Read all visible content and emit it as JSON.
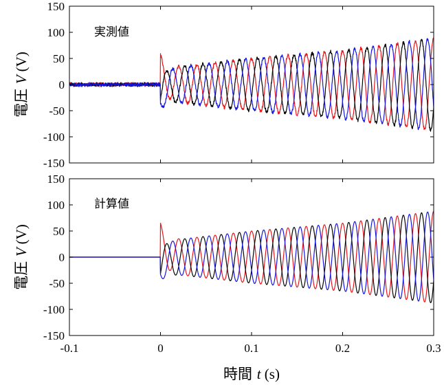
{
  "chart_data": [
    {
      "type": "line",
      "annotation": "実測値",
      "ylabel": {
        "text": "電圧",
        "symbol": "V",
        "unit": "(V)"
      },
      "xlim": [
        -0.1,
        0.3
      ],
      "ylim": [
        -150,
        150
      ],
      "xticks": [
        -0.1,
        0,
        0.1,
        0.2,
        0.3
      ],
      "xtick_labels": [
        "",
        "",
        "",
        "",
        ""
      ],
      "yticks": [
        150,
        100,
        50,
        0,
        -50,
        -100,
        -150
      ],
      "ytick_labels": [
        "150",
        "100",
        "50",
        "0",
        "-50",
        "-100",
        "-150"
      ],
      "grid": false,
      "model": {
        "t0": 0,
        "f": 50,
        "noise_before": 3,
        "noise_after": 3
      },
      "series": [
        {
          "color": "#e8151b",
          "phase_deg": 90,
          "amp_at": [
            [
              0,
              30
            ],
            [
              0.1,
              50
            ],
            [
              0.2,
              65
            ],
            [
              0.3,
              88
            ]
          ],
          "initial": 58
        },
        {
          "color": "#000000",
          "phase_deg": -30,
          "amp_at": [
            [
              0,
              30
            ],
            [
              0.1,
              50
            ],
            [
              0.2,
              65
            ],
            [
              0.3,
              88
            ]
          ],
          "initial": -28
        },
        {
          "color": "#1515e0",
          "phase_deg": 210,
          "amp_at": [
            [
              0,
              30
            ],
            [
              0.1,
              50
            ],
            [
              0.2,
              65
            ],
            [
              0.3,
              88
            ]
          ],
          "initial": -35
        }
      ]
    },
    {
      "type": "line",
      "annotation": "計算値",
      "ylabel": {
        "text": "電圧",
        "symbol": "V",
        "unit": "(V)"
      },
      "xlabel": {
        "text": "時間",
        "symbol": "t",
        "unit": "(s)"
      },
      "xlim": [
        -0.1,
        0.3
      ],
      "ylim": [
        -150,
        150
      ],
      "xticks": [
        -0.1,
        0,
        0.1,
        0.2,
        0.3
      ],
      "xtick_labels": [
        "-0.1",
        "0",
        "0.1",
        "0.2",
        "0.3"
      ],
      "yticks": [
        150,
        100,
        50,
        0,
        -50,
        -100,
        -150
      ],
      "ytick_labels": [
        "150",
        "100",
        "50",
        "0",
        "-50",
        "-100",
        "-150"
      ],
      "grid": false,
      "model": {
        "t0": 0,
        "f": 50,
        "noise_before": 0,
        "noise_after": 0
      },
      "series": [
        {
          "color": "#e8151b",
          "phase_deg": 90,
          "amp_at": [
            [
              0,
              30
            ],
            [
              0.1,
              50
            ],
            [
              0.2,
              65
            ],
            [
              0.3,
              88
            ]
          ],
          "initial": 65
        },
        {
          "color": "#000000",
          "phase_deg": -30,
          "amp_at": [
            [
              0,
              30
            ],
            [
              0.1,
              50
            ],
            [
              0.2,
              65
            ],
            [
              0.3,
              88
            ]
          ],
          "initial": -32
        },
        {
          "color": "#1515e0",
          "phase_deg": 210,
          "amp_at": [
            [
              0,
              30
            ],
            [
              0.1,
              50
            ],
            [
              0.2,
              65
            ],
            [
              0.3,
              88
            ]
          ],
          "initial": -33
        }
      ]
    }
  ]
}
